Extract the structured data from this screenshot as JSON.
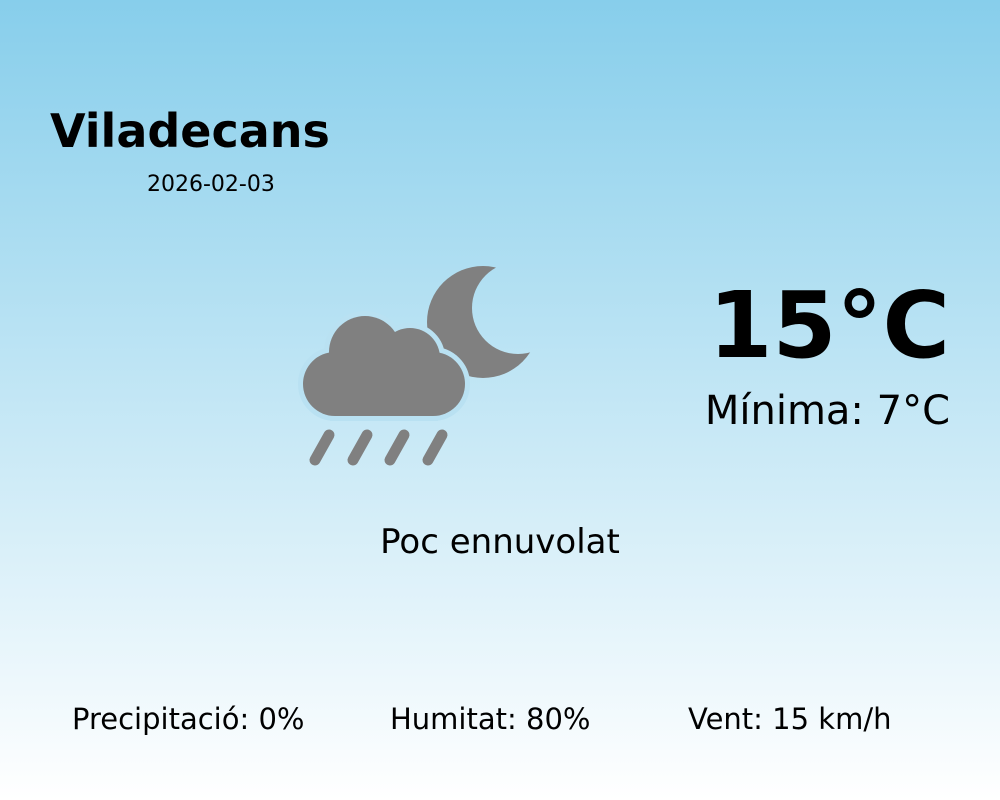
{
  "location": {
    "city": "Viladecans",
    "date": "2026-02-03"
  },
  "current": {
    "temperature": "15°C",
    "minimum": "Mínima: 7°C",
    "description": "Poc ennuvolat",
    "icon": "cloud-rain-moon-icon",
    "icon_color": "#808080"
  },
  "stats": {
    "precipitation": "Precipitació: 0%",
    "humidity": "Humitat: 80%",
    "wind": "Vent: 15 km/h"
  },
  "colors": {
    "background_top": "#87ceeb",
    "background_bottom": "#ffffff"
  }
}
